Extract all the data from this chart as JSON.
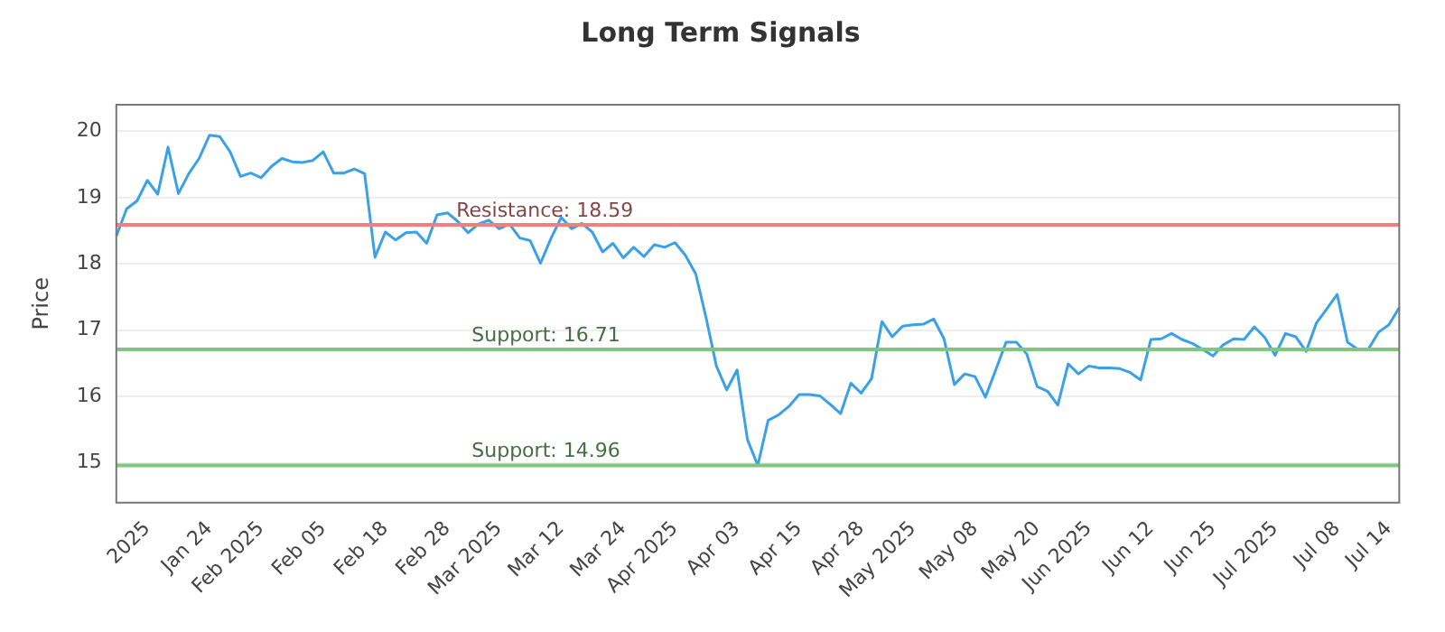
{
  "chart_data": {
    "type": "line",
    "title": "Long Term Signals",
    "ylabel": "Price",
    "categories": [
      null,
      null,
      null,
      "2025",
      null,
      null,
      null,
      null,
      null,
      "Jan 24",
      null,
      null,
      null,
      null,
      "Feb 2025",
      null,
      null,
      null,
      null,
      null,
      "Feb 05",
      null,
      null,
      null,
      null,
      null,
      "Feb 18",
      null,
      null,
      null,
      null,
      null,
      "Feb 28",
      null,
      null,
      null,
      null,
      "Mar 2025",
      null,
      null,
      null,
      null,
      null,
      "Mar 12",
      null,
      null,
      null,
      null,
      null,
      "Mar 24",
      null,
      null,
      null,
      null,
      "Apr 2025",
      null,
      null,
      null,
      null,
      null,
      "Apr 03",
      null,
      null,
      null,
      null,
      null,
      "Apr 15",
      null,
      null,
      null,
      null,
      null,
      "Apr 28",
      null,
      null,
      null,
      null,
      "May 2025",
      null,
      null,
      null,
      null,
      null,
      "May 08",
      null,
      null,
      null,
      null,
      null,
      "May 20",
      null,
      null,
      null,
      null,
      "Jun 2025",
      null,
      null,
      null,
      null,
      null,
      "Jun 12",
      null,
      null,
      null,
      null,
      null,
      "Jun 25",
      null,
      null,
      null,
      null,
      null,
      "Jul 2025",
      null,
      null,
      null,
      null,
      null,
      "Jul 08",
      null,
      null,
      null,
      null,
      "Jul 14",
      null
    ],
    "series": [
      {
        "color": "#3ba1e6",
        "values": [
          18.42,
          18.83,
          18.95,
          19.26,
          19.05,
          19.76,
          19.06,
          19.36,
          19.59,
          19.94,
          19.92,
          19.69,
          19.32,
          19.37,
          19.3,
          19.47,
          19.59,
          19.54,
          19.53,
          19.56,
          19.69,
          19.37,
          19.37,
          19.43,
          19.36,
          18.1,
          18.48,
          18.36,
          18.47,
          18.48,
          18.31,
          18.74,
          18.77,
          18.64,
          18.47,
          18.6,
          18.66,
          18.53,
          18.6,
          18.39,
          18.35,
          18.01,
          18.38,
          18.7,
          18.53,
          18.61,
          18.48,
          18.18,
          18.31,
          18.09,
          18.25,
          18.11,
          18.29,
          18.25,
          18.32,
          18.13,
          17.85,
          17.19,
          16.46,
          16.1,
          16.4,
          15.35,
          14.96,
          15.64,
          15.72,
          15.85,
          16.03,
          16.03,
          16.01,
          15.88,
          15.74,
          16.2,
          16.05,
          16.27,
          17.13,
          16.9,
          17.06,
          17.08,
          17.09,
          17.17,
          16.87,
          16.18,
          16.34,
          16.3,
          15.99,
          16.4,
          16.82,
          16.82,
          16.64,
          16.15,
          16.08,
          15.87,
          16.49,
          16.34,
          16.46,
          16.43,
          16.43,
          16.42,
          16.36,
          16.25,
          16.86,
          16.87,
          16.95,
          16.86,
          16.8,
          16.71,
          16.61,
          16.78,
          16.87,
          16.86,
          17.05,
          16.89,
          16.62,
          16.95,
          16.9,
          16.68,
          17.11,
          17.32,
          17.54,
          16.82,
          16.71,
          16.71,
          16.97,
          17.08,
          17.34
        ]
      }
    ],
    "ylim": [
      14.4,
      20.4
    ],
    "yticks": [
      15,
      16,
      17,
      18,
      19,
      20
    ],
    "grid": "y",
    "legend": false,
    "marker": "none",
    "line_style": "solid",
    "ref_lines": [
      {
        "axis": "y",
        "value": 18.59,
        "label": "Resistance: 18.59",
        "color": "#f08080"
      },
      {
        "axis": "y",
        "value": 16.71,
        "label": "Support: 16.71",
        "color": "#7cc87c"
      },
      {
        "axis": "y",
        "value": 14.96,
        "label": "Support: 14.96",
        "color": "#7cc87c"
      }
    ]
  }
}
